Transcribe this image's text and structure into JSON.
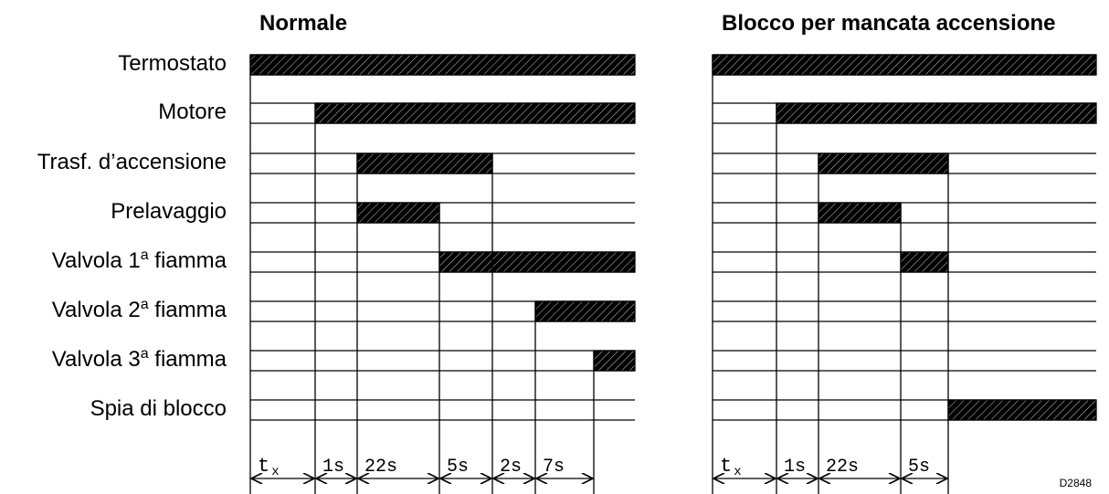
{
  "row_labels": [
    {
      "main": "Termostato"
    },
    {
      "main": "Motore"
    },
    {
      "main": "Trasf. d’accensione"
    },
    {
      "main": "Prelavaggio"
    },
    {
      "main": "Valvola 1",
      "sup": "a",
      "tail": " fiamma"
    },
    {
      "main": "Valvola 2",
      "sup": "a",
      "tail": " fiamma"
    },
    {
      "main": "Valvola 3",
      "sup": "a",
      "tail": " fiamma"
    },
    {
      "main": "Spia di blocco"
    }
  ],
  "diagrams": [
    {
      "title": "Normale",
      "durations": [
        {
          "label": "t",
          "sub": "x",
          "value": null
        },
        {
          "label": "1s",
          "value": 1
        },
        {
          "label": "22s",
          "value": 22
        },
        {
          "label": "5s",
          "value": 5
        },
        {
          "label": "2s",
          "value": 2
        },
        {
          "label": "7s",
          "value": 7
        }
      ],
      "signals": [
        {
          "row": "Termostato",
          "on_from": "start",
          "on_to": "end"
        },
        {
          "row": "Motore",
          "on_from": "after tx",
          "on_to": "end"
        },
        {
          "row": "Trasf. d’accensione",
          "on_from": "after 1s",
          "on_to": "after 5s"
        },
        {
          "row": "Prelavaggio",
          "on_from": "after 1s",
          "on_to": "after 22s"
        },
        {
          "row": "Valvola 1a fiamma",
          "on_from": "after 22s",
          "on_to": "end"
        },
        {
          "row": "Valvola 2a fiamma",
          "on_from": "after 2s",
          "on_to": "end"
        },
        {
          "row": "Valvola 3a fiamma",
          "on_from": "after 7s",
          "on_to": "end"
        },
        {
          "row": "Spia di blocco",
          "on_from": null,
          "on_to": null
        }
      ]
    },
    {
      "title": "Blocco per mancata accensione",
      "durations": [
        {
          "label": "t",
          "sub": "x",
          "value": null
        },
        {
          "label": "1s",
          "value": 1
        },
        {
          "label": "22s",
          "value": 22
        },
        {
          "label": "5s",
          "value": 5
        }
      ],
      "signals": [
        {
          "row": "Termostato",
          "on_from": "start",
          "on_to": "end"
        },
        {
          "row": "Motore",
          "on_from": "after tx",
          "on_to": "end"
        },
        {
          "row": "Trasf. d’accensione",
          "on_from": "after 1s",
          "on_to": "after 5s"
        },
        {
          "row": "Prelavaggio",
          "on_from": "after 1s",
          "on_to": "after 22s"
        },
        {
          "row": "Valvola 1a fiamma",
          "on_from": "after 22s",
          "on_to": "after 5s"
        },
        {
          "row": "Valvola 2a fiamma",
          "on_from": null,
          "on_to": null
        },
        {
          "row": "Valvola 3a fiamma",
          "on_from": null,
          "on_to": null
        },
        {
          "row": "Spia di blocco",
          "on_from": "after 5s",
          "on_to": "end"
        }
      ]
    }
  ],
  "drawing_code": "D2848",
  "colors": {
    "line": "#000000",
    "fill": "#000000",
    "background": "#ffffff"
  }
}
